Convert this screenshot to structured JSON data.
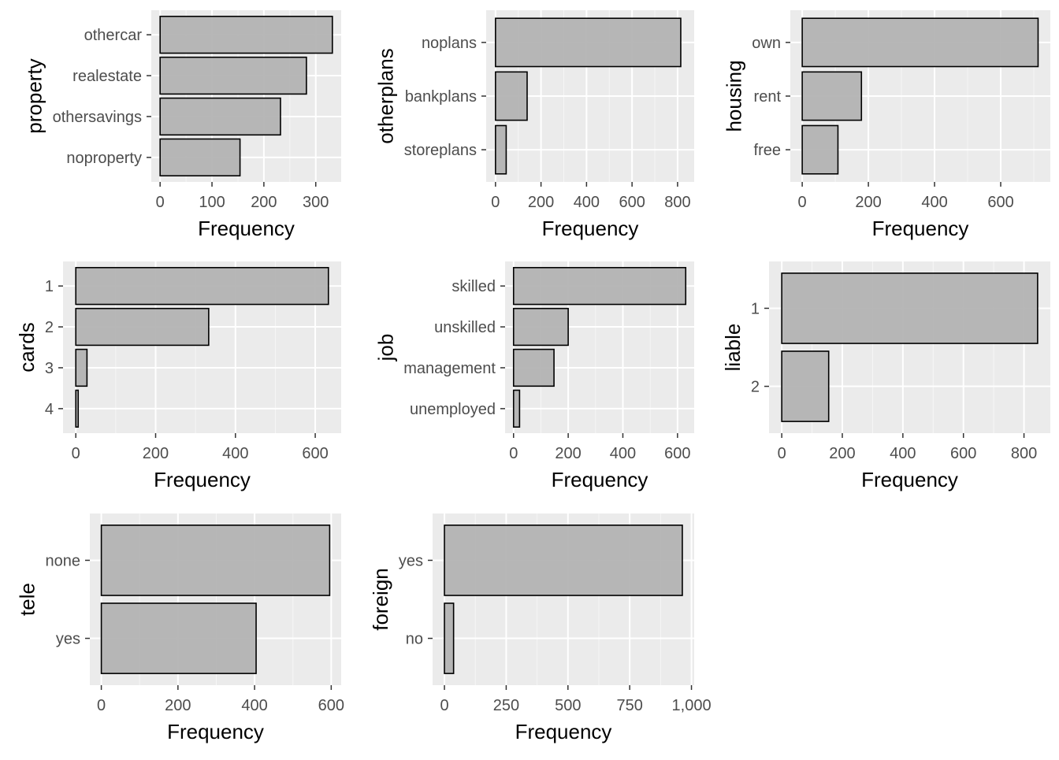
{
  "colors": {
    "panel_bg": "#ebebeb",
    "grid_major": "#ffffff",
    "bar_fill": "#b3b3b3",
    "bar_stroke": "#000000",
    "tick_mark": "#333333",
    "tick_label": "#4d4d4d",
    "axis_title": "#000000"
  },
  "chart_data": [
    {
      "type": "bar",
      "orientation": "horizontal",
      "categories": [
        "othercar",
        "realestate",
        "othersavings",
        "noproperty"
      ],
      "values": [
        332,
        282,
        232,
        154
      ],
      "xlabel": "Frequency",
      "ylabel": "property",
      "xlim": [
        -17,
        349
      ],
      "xticks": [
        0,
        100,
        200,
        300
      ],
      "xtick_labels": [
        "0",
        "100",
        "200",
        "300"
      ],
      "grid": true
    },
    {
      "type": "bar",
      "orientation": "horizontal",
      "categories": [
        "noplans",
        "bankplans",
        "storeplans"
      ],
      "values": [
        814,
        139,
        47
      ],
      "xlabel": "Frequency",
      "ylabel": "otherplans",
      "xlim": [
        -41,
        873
      ],
      "xticks": [
        0,
        200,
        400,
        600,
        800
      ],
      "xtick_labels": [
        "0",
        "200",
        "400",
        "600",
        "800"
      ],
      "grid": true
    },
    {
      "type": "bar",
      "orientation": "horizontal",
      "categories": [
        "own",
        "rent",
        "free"
      ],
      "values": [
        713,
        179,
        108
      ],
      "xlabel": "Frequency",
      "ylabel": "housing",
      "xlim": [
        -36,
        750
      ],
      "xticks": [
        0,
        200,
        400,
        600
      ],
      "xtick_labels": [
        "0",
        "200",
        "400",
        "600"
      ],
      "grid": true
    },
    {
      "type": "bar",
      "orientation": "horizontal",
      "categories": [
        "1",
        "2",
        "3",
        "4"
      ],
      "values": [
        633,
        333,
        28,
        6
      ],
      "xlabel": "Frequency",
      "ylabel": "cards",
      "xlim": [
        -32,
        665
      ],
      "xticks": [
        0,
        200,
        400,
        600
      ],
      "xtick_labels": [
        "0",
        "200",
        "400",
        "600"
      ],
      "grid": true
    },
    {
      "type": "bar",
      "orientation": "horizontal",
      "categories": [
        "skilled",
        "unskilled",
        "management",
        "unemployed"
      ],
      "values": [
        630,
        200,
        148,
        22
      ],
      "xlabel": "Frequency",
      "ylabel": "job",
      "xlim": [
        -31,
        661
      ],
      "xticks": [
        0,
        200,
        400,
        600
      ],
      "xtick_labels": [
        "0",
        "200",
        "400",
        "600"
      ],
      "grid": true
    },
    {
      "type": "bar",
      "orientation": "horizontal",
      "categories": [
        "1",
        "2"
      ],
      "values": [
        845,
        155
      ],
      "xlabel": "Frequency",
      "ylabel": "liable",
      "xlim": [
        -42,
        887
      ],
      "xticks": [
        0,
        200,
        400,
        600,
        800
      ],
      "xtick_labels": [
        "0",
        "200",
        "400",
        "600",
        "800"
      ],
      "grid": true
    },
    {
      "type": "bar",
      "orientation": "horizontal",
      "categories": [
        "none",
        "yes"
      ],
      "values": [
        596,
        404
      ],
      "xlabel": "Frequency",
      "ylabel": "tele",
      "xlim": [
        -30,
        626
      ],
      "xticks": [
        0,
        200,
        400,
        600
      ],
      "xtick_labels": [
        "0",
        "200",
        "400",
        "600"
      ],
      "grid": true
    },
    {
      "type": "bar",
      "orientation": "horizontal",
      "categories": [
        "yes",
        "no"
      ],
      "values": [
        963,
        37
      ],
      "xlabel": "Frequency",
      "ylabel": "foreign",
      "xlim": [
        -48,
        1011
      ],
      "xticks": [
        0,
        250,
        500,
        750,
        1000
      ],
      "xtick_labels": [
        "0",
        "250",
        "500",
        "750",
        "1,000"
      ],
      "grid": true
    }
  ]
}
